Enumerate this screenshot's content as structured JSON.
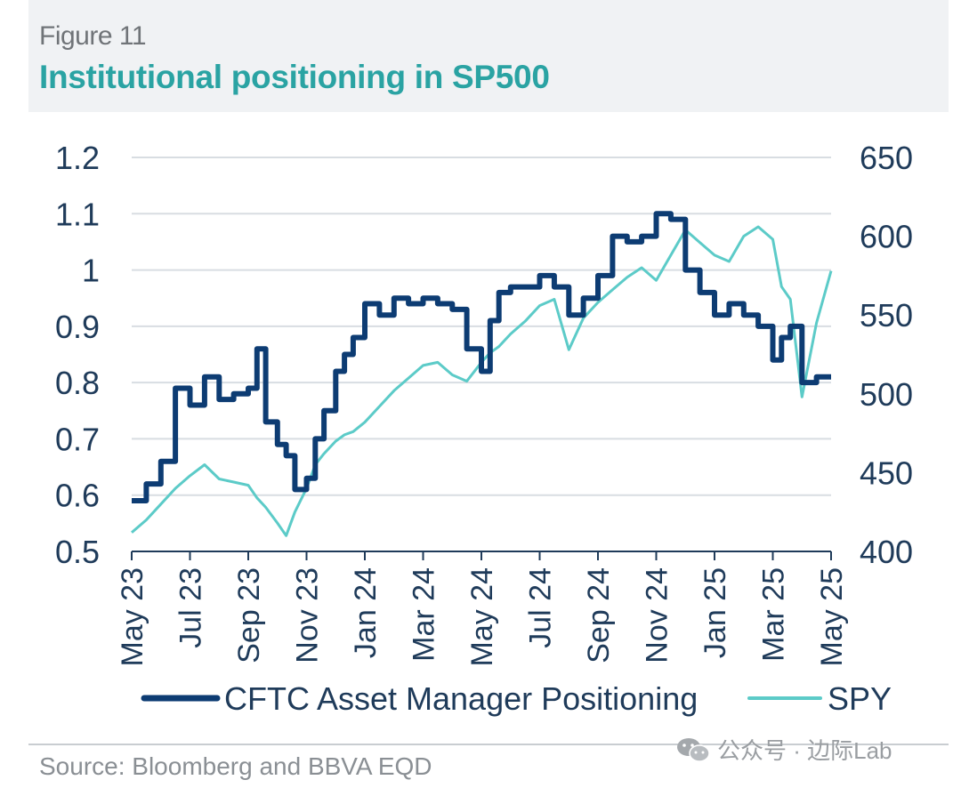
{
  "figure_label": "Figure 11",
  "title": "Institutional positioning in SP500",
  "source": "Source: Bloomberg and BBVA EQD",
  "watermark": "公众号 · 边际Lab",
  "colors": {
    "cftc": "#0d3c73",
    "spy": "#5ccbc8",
    "title": "#2aa3a3",
    "grid": "#d8dde2",
    "text": "#1f3b5a"
  },
  "chart_data": {
    "type": "line",
    "title": "Institutional positioning in SP500",
    "xlabel": "",
    "ylabel": "",
    "grid": true,
    "legend_position": "bottom",
    "x_tick_labels": [
      "May 23",
      "Jul 23",
      "Sep 23",
      "Nov 23",
      "Jan 24",
      "Mar 24",
      "May 24",
      "Jul 24",
      "Sep 24",
      "Nov 24",
      "Jan 25",
      "Mar 25",
      "May 25"
    ],
    "left_axis": {
      "ylim": [
        0.5,
        1.2
      ],
      "ticks": [
        "1.2",
        "1.1",
        "1",
        "0.9",
        "0.8",
        "0.7",
        "0.6",
        "0.5"
      ]
    },
    "right_axis": {
      "ylim": [
        400,
        650
      ],
      "ticks": [
        "650",
        "600",
        "550",
        "500",
        "450",
        "400"
      ]
    },
    "series": [
      {
        "name": "CFTC Asset Manager Positioning",
        "axis": "left",
        "x": [
          "2023-05",
          "2023-05.5",
          "2023-06",
          "2023-06.5",
          "2023-07",
          "2023-07.5",
          "2023-08",
          "2023-08.5",
          "2023-09",
          "2023-09.3",
          "2023-09.6",
          "2023-10",
          "2023-10.3",
          "2023-10.6",
          "2023-11",
          "2023-11.3",
          "2023-11.6",
          "2023-12",
          "2023-12.3",
          "2023-12.6",
          "2024-01",
          "2024-01.5",
          "2024-02",
          "2024-02.5",
          "2024-03",
          "2024-03.5",
          "2024-04",
          "2024-04.5",
          "2024-05",
          "2024-05.3",
          "2024-05.6",
          "2024-06",
          "2024-06.5",
          "2024-07",
          "2024-07.5",
          "2024-08",
          "2024-08.5",
          "2024-09",
          "2024-09.5",
          "2024-10",
          "2024-10.5",
          "2024-11",
          "2024-11.5",
          "2024-12",
          "2024-12.5",
          "2025-01",
          "2025-01.5",
          "2025-02",
          "2025-02.5",
          "2025-03",
          "2025-03.3",
          "2025-03.6",
          "2025-04",
          "2025-04.5",
          "2025-05"
        ],
        "values": [
          0.59,
          0.62,
          0.66,
          0.79,
          0.76,
          0.81,
          0.77,
          0.78,
          0.79,
          0.86,
          0.73,
          0.69,
          0.67,
          0.61,
          0.63,
          0.7,
          0.75,
          0.82,
          0.85,
          0.88,
          0.94,
          0.92,
          0.95,
          0.94,
          0.95,
          0.94,
          0.93,
          0.86,
          0.82,
          0.91,
          0.96,
          0.97,
          0.97,
          0.99,
          0.97,
          0.92,
          0.95,
          0.99,
          1.06,
          1.05,
          1.06,
          1.1,
          1.09,
          1.0,
          0.96,
          0.92,
          0.94,
          0.92,
          0.9,
          0.84,
          0.88,
          0.9,
          0.8,
          0.81,
          0.81
        ]
      },
      {
        "name": "SPY",
        "axis": "right",
        "x": [
          "2023-05",
          "2023-05.5",
          "2023-06",
          "2023-06.5",
          "2023-07",
          "2023-07.5",
          "2023-08",
          "2023-08.5",
          "2023-09",
          "2023-09.3",
          "2023-09.6",
          "2023-10",
          "2023-10.3",
          "2023-10.6",
          "2023-11",
          "2023-11.3",
          "2023-11.6",
          "2023-12",
          "2023-12.3",
          "2023-12.6",
          "2024-01",
          "2024-01.5",
          "2024-02",
          "2024-02.5",
          "2024-03",
          "2024-03.5",
          "2024-04",
          "2024-04.5",
          "2024-05",
          "2024-05.3",
          "2024-05.6",
          "2024-06",
          "2024-06.5",
          "2024-07",
          "2024-07.5",
          "2024-08",
          "2024-08.5",
          "2024-09",
          "2024-09.5",
          "2024-10",
          "2024-10.5",
          "2024-11",
          "2024-11.5",
          "2024-12",
          "2024-12.5",
          "2025-01",
          "2025-01.5",
          "2025-02",
          "2025-02.5",
          "2025-03",
          "2025-03.3",
          "2025-03.6",
          "2025-04",
          "2025-04.5",
          "2025-05"
        ],
        "values": [
          412,
          420,
          430,
          440,
          448,
          455,
          446,
          444,
          442,
          434,
          428,
          418,
          410,
          425,
          440,
          455,
          462,
          470,
          474,
          476,
          482,
          492,
          502,
          510,
          518,
          520,
          512,
          508,
          520,
          526,
          530,
          538,
          546,
          556,
          560,
          528,
          548,
          558,
          566,
          574,
          580,
          572,
          588,
          604,
          596,
          588,
          584,
          600,
          606,
          598,
          568,
          560,
          498,
          545,
          578
        ]
      }
    ]
  }
}
